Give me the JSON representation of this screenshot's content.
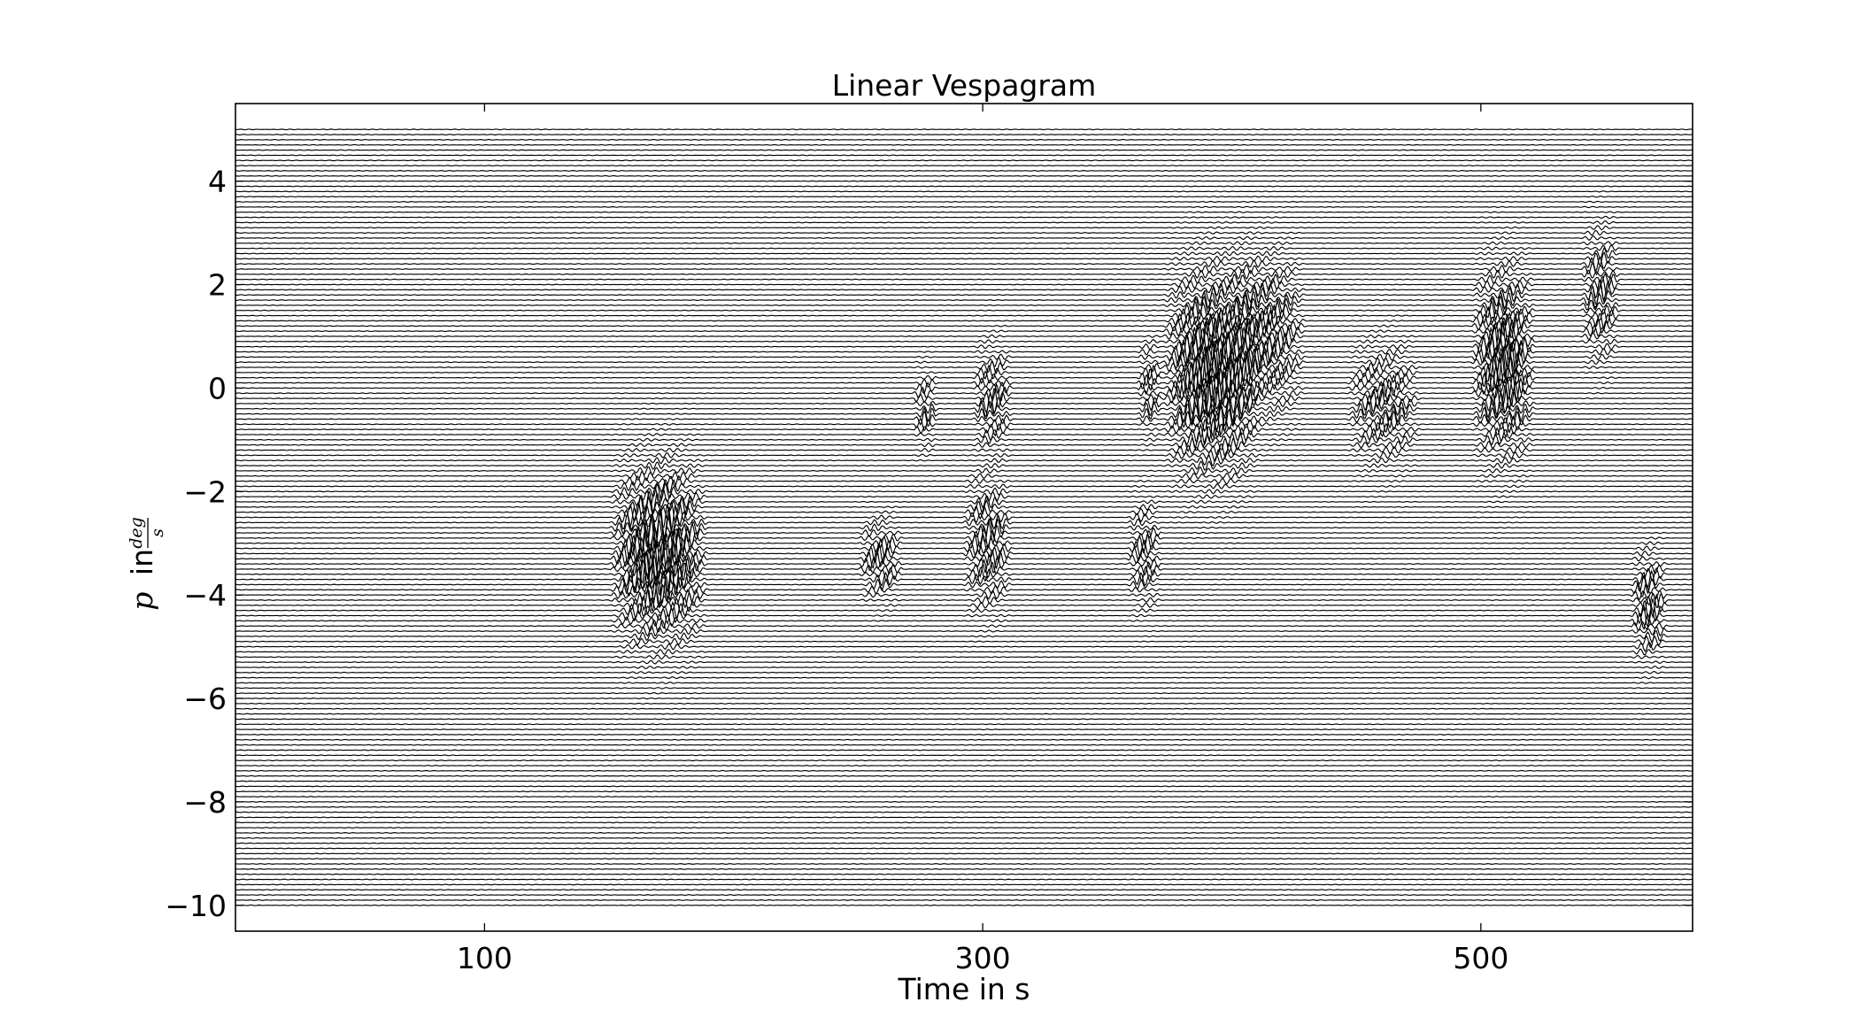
{
  "chart_data": {
    "type": "line",
    "title": "Linear Vespagram",
    "xlabel": "Time in s",
    "ylabel": {
      "symbol": "p",
      "word": "in",
      "numerator": "deg",
      "denominator": "s"
    },
    "xlim": [
      0,
      585
    ],
    "ylim": [
      -10.5,
      5.5
    ],
    "x_ticks": [
      100,
      300,
      500
    ],
    "y_ticks": [
      4,
      2,
      0,
      -2,
      -4,
      -6,
      -8,
      -10
    ],
    "y_tick_labels": [
      "4",
      "2",
      "0",
      "−2",
      "−4",
      "−6",
      "−8",
      "−10"
    ],
    "slowness_range": [
      -10,
      5
    ],
    "slowness_step": 0.1,
    "trace_color": "#000000",
    "grid": false,
    "legend": "none",
    "energy_bursts": [
      {
        "t_start": 150,
        "t_end": 190,
        "p_center": -3.2,
        "p_spread": 1.3,
        "amplitude": 1.0
      },
      {
        "t_start": 250,
        "t_end": 268,
        "p_center": -3.3,
        "p_spread": 0.6,
        "amplitude": 0.55
      },
      {
        "t_start": 272,
        "t_end": 282,
        "p_center": -0.4,
        "p_spread": 0.6,
        "amplitude": 0.45
      },
      {
        "t_start": 292,
        "t_end": 312,
        "p_center": -3.0,
        "p_spread": 1.0,
        "amplitude": 0.6
      },
      {
        "t_start": 296,
        "t_end": 312,
        "p_center": -0.2,
        "p_spread": 0.8,
        "amplitude": 0.55
      },
      {
        "t_start": 358,
        "t_end": 372,
        "p_center": -3.2,
        "p_spread": 0.8,
        "amplitude": 0.5
      },
      {
        "t_start": 362,
        "t_end": 372,
        "p_center": 0.0,
        "p_spread": 0.7,
        "amplitude": 0.5
      },
      {
        "t_start": 372,
        "t_end": 412,
        "p_center": 0.3,
        "p_spread": 1.5,
        "amplitude": 1.0
      },
      {
        "t_start": 398,
        "t_end": 430,
        "p_center": 1.0,
        "p_spread": 1.2,
        "amplitude": 0.6
      },
      {
        "t_start": 446,
        "t_end": 476,
        "p_center": -0.3,
        "p_spread": 0.9,
        "amplitude": 0.5
      },
      {
        "t_start": 496,
        "t_end": 522,
        "p_center": 0.5,
        "p_spread": 1.4,
        "amplitude": 0.9
      },
      {
        "t_start": 540,
        "t_end": 556,
        "p_center": 1.8,
        "p_spread": 1.0,
        "amplitude": 0.55
      },
      {
        "t_start": 560,
        "t_end": 575,
        "p_center": -4.2,
        "p_spread": 0.8,
        "amplitude": 0.65
      }
    ]
  }
}
